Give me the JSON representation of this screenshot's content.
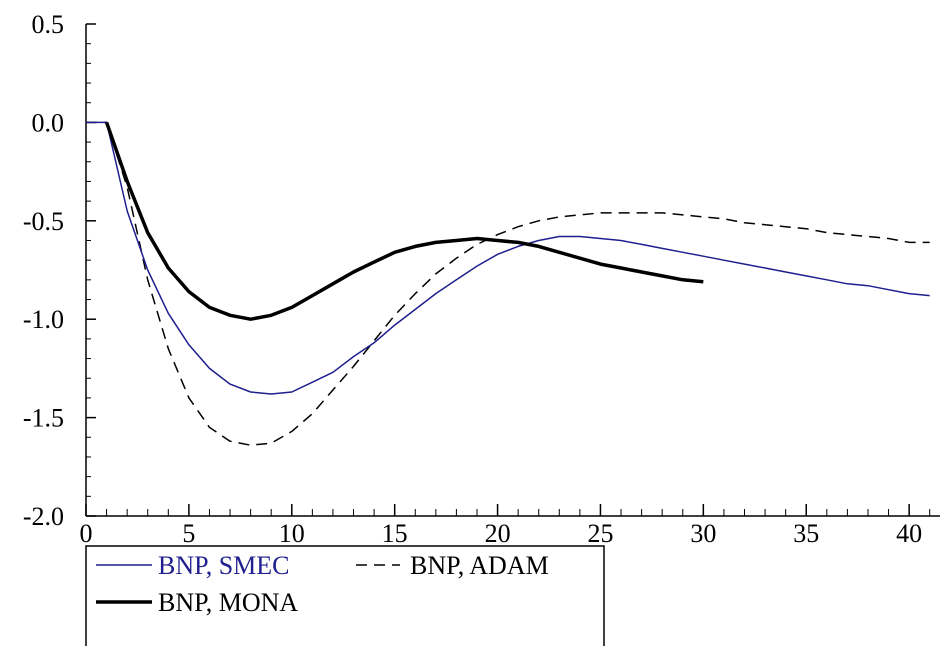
{
  "chart_data": {
    "type": "line",
    "title": "",
    "xlabel": "",
    "ylabel": "",
    "xlim": [
      0,
      41.5
    ],
    "ylim": [
      -2.0,
      0.5
    ],
    "x_ticks": [
      0,
      5,
      10,
      15,
      20,
      25,
      30,
      35,
      40
    ],
    "x_tick_labels": [
      "0",
      "5",
      "10",
      "15",
      "20",
      "25",
      "30",
      "35",
      "40"
    ],
    "y_ticks": [
      0.5,
      0.0,
      -0.5,
      -1.0,
      -1.5,
      -2.0
    ],
    "y_tick_labels": [
      "0.5",
      "0.0",
      "-0.5",
      "-1.0",
      "-1.5",
      "-2.0"
    ],
    "grid": false,
    "legend_position": "bottom-left",
    "series": [
      {
        "name": "BNP, SMEC",
        "color": "#1f1f8f",
        "style": "solid",
        "x": [
          0,
          1,
          2,
          3,
          4,
          5,
          6,
          7,
          8,
          9,
          10,
          11,
          12,
          13,
          14,
          15,
          16,
          17,
          18,
          19,
          20,
          21,
          22,
          23,
          24,
          25,
          26,
          27,
          28,
          29,
          30,
          31,
          32,
          33,
          34,
          35,
          36,
          37,
          38,
          39,
          40,
          41
        ],
        "values": [
          0.0,
          0.0,
          -0.45,
          -0.75,
          -0.97,
          -1.13,
          -1.25,
          -1.33,
          -1.37,
          -1.38,
          -1.37,
          -1.32,
          -1.27,
          -1.19,
          -1.12,
          -1.03,
          -0.95,
          -0.87,
          -0.8,
          -0.73,
          -0.67,
          -0.63,
          -0.6,
          -0.58,
          -0.58,
          -0.59,
          -0.6,
          -0.62,
          -0.64,
          -0.66,
          -0.68,
          -0.7,
          -0.72,
          -0.74,
          -0.76,
          -0.78,
          -0.8,
          -0.82,
          -0.83,
          -0.85,
          -0.87,
          -0.88
        ]
      },
      {
        "name": "BNP, ADAM",
        "color": "#000000",
        "style": "dashed",
        "x": [
          0,
          1,
          2,
          3,
          4,
          5,
          6,
          7,
          8,
          9,
          10,
          11,
          12,
          13,
          14,
          15,
          16,
          17,
          18,
          19,
          20,
          21,
          22,
          23,
          24,
          25,
          26,
          27,
          28,
          29,
          30,
          31,
          32,
          33,
          34,
          35,
          36,
          37,
          38,
          39,
          40,
          41
        ],
        "values": [
          0.0,
          0.0,
          -0.33,
          -0.8,
          -1.15,
          -1.4,
          -1.55,
          -1.62,
          -1.64,
          -1.63,
          -1.57,
          -1.48,
          -1.36,
          -1.24,
          -1.11,
          -0.98,
          -0.87,
          -0.77,
          -0.69,
          -0.62,
          -0.57,
          -0.53,
          -0.5,
          -0.48,
          -0.47,
          -0.46,
          -0.46,
          -0.46,
          -0.46,
          -0.47,
          -0.48,
          -0.49,
          -0.51,
          -0.52,
          -0.53,
          -0.54,
          -0.56,
          -0.57,
          -0.58,
          -0.59,
          -0.61,
          -0.61
        ]
      },
      {
        "name": "BNP, MONA",
        "color": "#000000",
        "style": "solid-thick",
        "x": [
          1,
          2,
          3,
          4,
          5,
          6,
          7,
          8,
          9,
          10,
          11,
          12,
          13,
          14,
          15,
          16,
          17,
          18,
          19,
          20,
          21,
          22,
          23,
          24,
          25,
          26,
          27,
          28,
          29,
          30
        ],
        "values": [
          0.0,
          -0.3,
          -0.56,
          -0.74,
          -0.86,
          -0.94,
          -0.98,
          -1.0,
          -0.98,
          -0.94,
          -0.88,
          -0.82,
          -0.76,
          -0.71,
          -0.66,
          -0.63,
          -0.61,
          -0.6,
          -0.59,
          -0.6,
          -0.61,
          -0.63,
          -0.66,
          -0.69,
          -0.72,
          -0.74,
          -0.76,
          -0.78,
          -0.8,
          -0.81
        ]
      }
    ]
  }
}
